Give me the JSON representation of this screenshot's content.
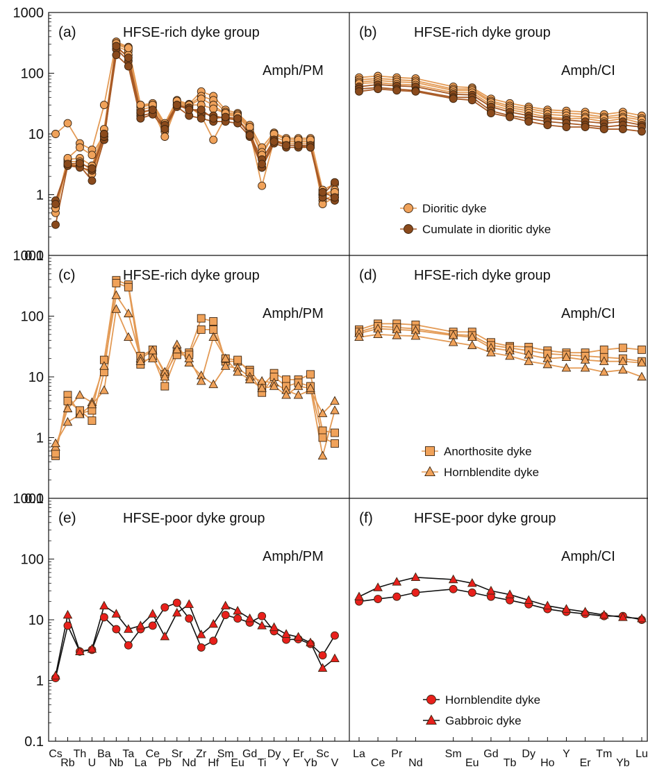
{
  "colors": {
    "light_orange": "#f0a25a",
    "light_orange_line": "#e39a55",
    "dark_brown": "#8a4a1c",
    "brown_line": "#a85a26",
    "red_fill": "#e8201c",
    "black_line": "#111111",
    "marker_edge": "#3a2410"
  },
  "y_axis": {
    "scale": "log",
    "tick_labels": [
      "1000",
      "100",
      "10",
      "1",
      "0.1"
    ]
  },
  "x_axis": {
    "pm_elements": [
      "Cs",
      "Rb",
      "Th",
      "U",
      "Ba",
      "Nb",
      "Ta",
      "La",
      "Ce",
      "Pb",
      "Sr",
      "Nd",
      "Zr",
      "Hf",
      "Sm",
      "Eu",
      "Gd",
      "Ti",
      "Dy",
      "Y",
      "Er",
      "Yb",
      "Sc",
      "V"
    ],
    "ree_elements": [
      "La",
      "Ce",
      "Pr",
      "Nd",
      "Sm",
      "Eu",
      "Gd",
      "Tb",
      "Dy",
      "Ho",
      "Y",
      "Er",
      "Tm",
      "Yb",
      "Lu"
    ],
    "ree_positions": [
      1,
      2,
      3,
      4,
      6,
      7,
      8,
      9,
      10,
      11,
      12,
      13,
      14,
      15,
      16
    ]
  },
  "chart_data": [
    {
      "panel": "a",
      "type": "line",
      "yscale": "log",
      "ylim": [
        0.1,
        1000
      ],
      "label": "(a)",
      "title": "HFSE-rich dyke group",
      "norm": "Amph/PM",
      "x_kind": "pm",
      "series": [
        {
          "name": "Dioritic dyke",
          "group": "light",
          "marker": "circle",
          "values": [
            10,
            15,
            7,
            5.5,
            30,
            330,
            270,
            30,
            32,
            15,
            36,
            31,
            50,
            42,
            25,
            22,
            14,
            6,
            10.5,
            8.5,
            8.5,
            8.5,
            1.2,
            1.5
          ]
        },
        {
          "name": "Dioritic dyke",
          "group": "light",
          "marker": "circle",
          "values": [
            0.6,
            3.8,
            4,
            3,
            12,
            300,
            250,
            28,
            30,
            13,
            34,
            30,
            42,
            36,
            23,
            21,
            13,
            5,
            10,
            8,
            8,
            8,
            1,
            1.2
          ]
        },
        {
          "name": "Dioritic dyke",
          "group": "light",
          "marker": "circle",
          "values": [
            0.5,
            3.5,
            3.5,
            2.5,
            9,
            280,
            230,
            25,
            28,
            11,
            32,
            29,
            38,
            30,
            21,
            19,
            12,
            2.8,
            9,
            7.5,
            7.5,
            7.5,
            0.8,
            1
          ]
        },
        {
          "name": "Dioritic dyke",
          "group": "light",
          "marker": "circle",
          "values": [
            0.6,
            3.2,
            3,
            2.2,
            8,
            250,
            200,
            22,
            25,
            9,
            30,
            28,
            20,
            8,
            19,
            17,
            11,
            1.4,
            8,
            7,
            7,
            7,
            0.7,
            0.9
          ]
        },
        {
          "name": "Dioritic dyke",
          "group": "light",
          "marker": "circle",
          "values": [
            0.6,
            4,
            6,
            4.5,
            10,
            310,
            260,
            30,
            30,
            14,
            35,
            30,
            30,
            26,
            22,
            20,
            13,
            4.5,
            10,
            8,
            8,
            8,
            1,
            1.1
          ]
        },
        {
          "name": "Cumulate in dioritic dyke",
          "group": "dark",
          "marker": "circle",
          "values": [
            0.8,
            3,
            3,
            1.7,
            8,
            250,
            160,
            20,
            22,
            14,
            30,
            27,
            22,
            20,
            18,
            17,
            10,
            3.8,
            8,
            6.5,
            6.5,
            6.5,
            1,
            1.6
          ]
        },
        {
          "name": "Cumulate in dioritic dyke",
          "group": "dark",
          "marker": "circle",
          "values": [
            0.32,
            3,
            2.8,
            2.5,
            9,
            200,
            130,
            18,
            21,
            12,
            28,
            20,
            18,
            16,
            16,
            15,
            9,
            2.8,
            7,
            6,
            6,
            6,
            0.9,
            0.8
          ]
        },
        {
          "name": "Cumulate in dioritic dyke",
          "group": "dark",
          "marker": "circle",
          "values": [
            0.7,
            3.2,
            3.3,
            2.7,
            10,
            280,
            180,
            23,
            25,
            12,
            30,
            25,
            25,
            18,
            19,
            18,
            9.5,
            3.2,
            7.5,
            6.5,
            6.5,
            6,
            1.1,
            0.9
          ]
        }
      ]
    },
    {
      "panel": "b",
      "type": "line",
      "yscale": "log",
      "ylim": [
        0.1,
        1000
      ],
      "label": "(b)",
      "title": "HFSE-rich dyke group",
      "norm": "Amph/CI",
      "x_kind": "ree",
      "legend": [
        {
          "name": "Dioritic dyke",
          "group": "light",
          "marker": "circle"
        },
        {
          "name": "Cumulate in dioritic dyke",
          "group": "dark",
          "marker": "circle"
        }
      ],
      "series": [
        {
          "name": "Dioritic dyke",
          "group": "light",
          "marker": "circle",
          "values": [
            85,
            90,
            85,
            82,
            60,
            58,
            38,
            32,
            28,
            25,
            24,
            23,
            21,
            23,
            20
          ]
        },
        {
          "name": "Dioritic dyke",
          "group": "light",
          "marker": "circle",
          "values": [
            78,
            82,
            78,
            75,
            55,
            55,
            35,
            29,
            26,
            23,
            22,
            21,
            19,
            21,
            18
          ]
        },
        {
          "name": "Dioritic dyke",
          "group": "light",
          "marker": "circle",
          "values": [
            72,
            76,
            72,
            70,
            52,
            52,
            33,
            27,
            24,
            21,
            20,
            19,
            18,
            19,
            17
          ]
        },
        {
          "name": "Dioritic dyke",
          "group": "light",
          "marker": "circle",
          "values": [
            68,
            70,
            66,
            64,
            48,
            48,
            30,
            25,
            22,
            19,
            18,
            18,
            16,
            18,
            15
          ]
        },
        {
          "name": "Cumulate in dioritic dyke",
          "group": "dark",
          "marker": "circle",
          "values": [
            60,
            65,
            62,
            60,
            45,
            44,
            28,
            23,
            20,
            18,
            17,
            16,
            15,
            16,
            14
          ]
        },
        {
          "name": "Cumulate in dioritic dyke",
          "group": "dark",
          "marker": "circle",
          "values": [
            55,
            58,
            55,
            52,
            40,
            40,
            24,
            20,
            18,
            16,
            15,
            14,
            13,
            14,
            13
          ]
        },
        {
          "name": "Cumulate in dioritic dyke",
          "group": "dark",
          "marker": "circle",
          "values": [
            50,
            55,
            52,
            50,
            38,
            36,
            22,
            19,
            16,
            14,
            13,
            13,
            12,
            12,
            11
          ]
        }
      ]
    },
    {
      "panel": "c",
      "type": "line",
      "yscale": "log",
      "ylim": [
        0.1,
        1000
      ],
      "label": "(c)",
      "title": "HFSE-rich dyke group",
      "norm": "Amph/PM",
      "x_kind": "pm",
      "series": [
        {
          "name": "Anorthosite dyke",
          "group": "light",
          "marker": "square",
          "values": [
            0.5,
            5,
            2.5,
            2.8,
            19,
            390,
            330,
            22,
            28,
            11,
            25,
            25,
            92,
            82,
            18,
            18,
            13,
            7,
            11.5,
            9,
            9,
            11,
            1.3,
            1.2
          ]
        },
        {
          "name": "Anorthosite dyke",
          "group": "light",
          "marker": "square",
          "values": [
            0.55,
            4,
            2.8,
            1.9,
            12,
            350,
            300,
            16,
            22,
            7,
            23,
            23,
            60,
            60,
            20,
            19,
            12,
            5.5,
            10,
            7,
            8,
            7,
            1,
            0.8
          ]
        },
        {
          "name": "Hornblendite dyke",
          "group": "light",
          "marker": "triangle",
          "values": [
            0.7,
            3,
            5,
            3.8,
            15,
            220,
            110,
            20,
            27,
            12,
            34,
            17,
            10.5,
            7.5,
            15,
            14,
            10,
            8.5,
            8,
            6,
            5,
            6,
            2.5,
            4
          ]
        },
        {
          "name": "Hornblendite dyke",
          "group": "light",
          "marker": "triangle",
          "values": [
            0.8,
            1.8,
            2.4,
            3.5,
            6,
            130,
            45,
            18,
            20,
            10,
            28,
            20,
            8.5,
            45,
            20,
            12,
            9,
            6.5,
            7,
            5,
            7,
            6.5,
            0.5,
            2.8
          ]
        }
      ]
    },
    {
      "panel": "d",
      "type": "line",
      "yscale": "log",
      "ylim": [
        0.1,
        1000
      ],
      "label": "(d)",
      "title": "HFSE-rich dyke group",
      "norm": "Amph/CI",
      "x_kind": "ree",
      "legend": [
        {
          "name": "Anorthosite dyke",
          "group": "light",
          "marker": "square"
        },
        {
          "name": "Hornblendite dyke",
          "group": "light",
          "marker": "triangle"
        }
      ],
      "series": [
        {
          "name": "Anorthosite dyke",
          "group": "light",
          "marker": "square",
          "values": [
            60,
            75,
            75,
            72,
            55,
            55,
            37,
            32,
            31,
            27,
            25,
            25,
            28,
            30,
            28
          ]
        },
        {
          "name": "Anorthosite dyke",
          "group": "light",
          "marker": "square",
          "values": [
            55,
            68,
            65,
            62,
            50,
            48,
            33,
            30,
            27,
            24,
            23,
            22,
            21,
            20,
            18
          ]
        },
        {
          "name": "Hornblendite dyke",
          "group": "light",
          "marker": "triangle",
          "values": [
            52,
            62,
            60,
            58,
            48,
            45,
            30,
            27,
            23,
            20,
            21,
            19,
            18,
            18,
            17
          ]
        },
        {
          "name": "Hornblendite dyke",
          "group": "light",
          "marker": "triangle",
          "values": [
            45,
            50,
            48,
            47,
            37,
            33,
            25,
            22,
            18,
            16,
            14,
            14,
            12,
            13,
            10
          ]
        }
      ]
    },
    {
      "panel": "e",
      "type": "line",
      "yscale": "log",
      "ylim": [
        0.1,
        1000
      ],
      "label": "(e)",
      "title": "HFSE-poor dyke group",
      "norm": "Amph/PM",
      "x_kind": "pm",
      "series": [
        {
          "name": "Hornblendite dyke",
          "group": "red",
          "marker": "circle",
          "values": [
            1.1,
            8,
            3,
            3.2,
            11,
            7,
            3.8,
            7,
            8,
            16,
            19,
            10.5,
            3.5,
            4.5,
            12,
            10.5,
            9,
            11.5,
            6.5,
            4.7,
            4.8,
            4,
            2.6,
            5.5
          ]
        },
        {
          "name": "Gabbroic dyke",
          "group": "red",
          "marker": "triangle",
          "values": [
            1.2,
            12,
            3,
            3.3,
            17,
            12.5,
            7,
            8,
            12.5,
            5.3,
            13,
            18,
            5.7,
            8.5,
            17,
            14,
            10.5,
            8,
            7.5,
            5.8,
            5.2,
            4.2,
            1.6,
            2.3
          ]
        }
      ]
    },
    {
      "panel": "f",
      "type": "line",
      "yscale": "log",
      "ylim": [
        0.1,
        1000
      ],
      "label": "(f)",
      "title": "HFSE-poor dyke group",
      "norm": "Amph/CI",
      "x_kind": "ree",
      "legend": [
        {
          "name": "Hornblendite dyke",
          "group": "red",
          "marker": "circle"
        },
        {
          "name": "Gabbroic dyke",
          "group": "red",
          "marker": "triangle"
        }
      ],
      "series": [
        {
          "name": "Hornblendite dyke",
          "group": "red",
          "marker": "circle",
          "values": [
            20,
            22,
            24,
            28,
            32,
            28,
            24,
            21,
            18,
            15,
            13.5,
            12.5,
            11.5,
            11.5,
            10
          ]
        },
        {
          "name": "Gabbroic dyke",
          "group": "red",
          "marker": "triangle",
          "values": [
            24,
            34,
            42,
            50,
            46,
            40,
            30,
            26,
            21,
            17,
            15,
            13.5,
            12,
            11,
            10.5
          ]
        }
      ]
    }
  ]
}
